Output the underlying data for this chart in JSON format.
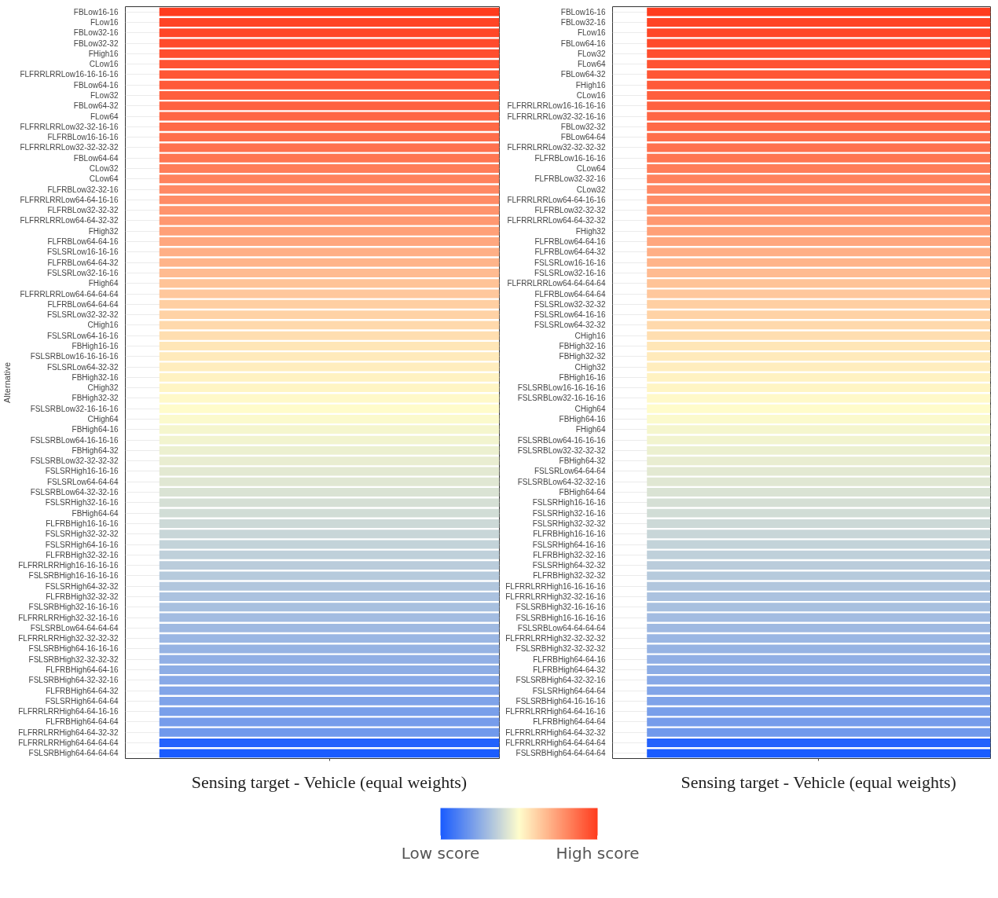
{
  "chart_data": {
    "type": "heatmap",
    "ylabel": "Alternative",
    "grid": "y",
    "categories": [
      "Sensing target - Vehicle (equal weights)",
      "Sensing target - Vehicle (equal weights)"
    ],
    "y_categories": [
      "FBLow16-16",
      "FLow16",
      "FBLow32-16",
      "FBLow32-32",
      "FHigh16",
      "CLow16",
      "FLFRRLRRLow16-16-16-16",
      "FBLow64-16",
      "FLow32",
      "FBLow64-32",
      "FLow64",
      "FLFRRLRRLow32-32-16-16",
      "FLFRBLow16-16-16",
      "FLFRRLRRLow32-32-32-32",
      "FBLow64-64",
      "CLow32",
      "CLow64",
      "FLFRBLow32-32-16",
      "FLFRRLRRLow64-64-16-16",
      "FLFRBLow32-32-32",
      "FLFRRLRRLow64-64-32-32",
      "FHigh32",
      "FLFRBLow64-64-16",
      "FSLSRLow16-16-16",
      "FLFRBLow64-64-32",
      "FSLSRLow32-16-16",
      "FHigh64",
      "FLFRRLRRLow64-64-64-64",
      "FLFRBLow64-64-64",
      "FSLSRLow32-32-32",
      "CHigh16",
      "FSLSRLow64-16-16",
      "FBHigh16-16",
      "FSLSRBLow16-16-16-16",
      "FSLSRLow64-32-32",
      "FBHigh32-16",
      "CHigh32",
      "FBHigh32-32",
      "FSLSRBLow32-16-16-16",
      "CHigh64",
      "FBHigh64-16",
      "FSLSRBLow64-16-16-16",
      "FBHigh64-32",
      "FSLSRBLow32-32-32-32",
      "FSLSRHigh16-16-16",
      "FSLSRLow64-64-64",
      "FSLSRBLow64-32-32-16",
      "FSLSRHigh32-16-16",
      "FBHigh64-64",
      "FLFRBHigh16-16-16",
      "FSLSRHigh32-32-32",
      "FSLSRHigh64-16-16",
      "FLFRBHigh32-32-16",
      "FLFRRLRRHigh16-16-16-16",
      "FSLSRBHigh16-16-16-16",
      "FSLSRHigh64-32-32",
      "FLFRBHigh32-32-32",
      "FSLSRBHigh32-16-16-16",
      "FLFRRLRRHigh32-32-16-16",
      "FSLSRBLow64-64-64-64",
      "FLFRRLRRHigh32-32-32-32",
      "FSLSRBHigh64-16-16-16",
      "FSLSRBHigh32-32-32-32",
      "FLFRBHigh64-64-16",
      "FSLSRBHigh64-32-32-16",
      "FLFRBHigh64-64-32",
      "FSLSRHigh64-64-64",
      "FLFRRLRRHigh64-64-16-16",
      "FLFRBHigh64-64-64",
      "FLFRRLRRHigh64-64-32-32",
      "FLFRRLRRHigh64-64-64-64",
      "FSLSRBHigh64-64-64-64"
    ],
    "y2_categories": [
      "FBLow16-16",
      "FBLow32-16",
      "FLow16",
      "FBLow64-16",
      "FLow32",
      "FLow64",
      "FBLow64-32",
      "FHigh16",
      "CLow16",
      "FLFRRLRRLow16-16-16-16",
      "FLFRRLRRLow32-32-16-16",
      "FBLow32-32",
      "FBLow64-64",
      "FLFRRLRRLow32-32-32-32",
      "FLFRBLow16-16-16",
      "CLow64",
      "FLFRBLow32-32-16",
      "CLow32",
      "FLFRRLRRLow64-64-16-16",
      "FLFRBLow32-32-32",
      "FLFRRLRRLow64-64-32-32",
      "FHigh32",
      "FLFRBLow64-64-16",
      "FLFRBLow64-64-32",
      "FSLSRLow16-16-16",
      "FSLSRLow32-16-16",
      "FLFRRLRRLow64-64-64-64",
      "FLFRBLow64-64-64",
      "FSLSRLow32-32-32",
      "FSLSRLow64-16-16",
      "FSLSRLow64-32-32",
      "CHigh16",
      "FBHigh32-16",
      "FBHigh32-32",
      "CHigh32",
      "FBHigh16-16",
      "FSLSRBLow16-16-16-16",
      "FSLSRBLow32-16-16-16",
      "CHigh64",
      "FBHigh64-16",
      "FHigh64",
      "FSLSRBLow64-16-16-16",
      "FSLSRBLow32-32-32-32",
      "FBHigh64-32",
      "FSLSRLow64-64-64",
      "FSLSRBLow64-32-32-16",
      "FBHigh64-64",
      "FSLSRHigh16-16-16",
      "FSLSRHigh32-16-16",
      "FSLSRHigh32-32-32",
      "FLFRBHigh16-16-16",
      "FSLSRHigh64-16-16",
      "FLFRBHigh32-32-16",
      "FSLSRHigh64-32-32",
      "FLFRBHigh32-32-32",
      "FLFRRLRRHigh16-16-16-16",
      "FLFRRLRRHigh32-32-16-16",
      "FSLSRBHigh32-16-16-16",
      "FSLSRBHigh16-16-16-16",
      "FSLSRBLow64-64-64-64",
      "FLFRRLRRHigh32-32-32-32",
      "FSLSRBHigh32-32-32-32",
      "FLFRBHigh64-64-16",
      "FLFRBHigh64-64-32",
      "FSLSRBHigh64-32-32-16",
      "FSLSRHigh64-64-64",
      "FSLSRBHigh64-16-16-16",
      "FLFRRLRRHigh64-64-16-16",
      "FLFRBHigh64-64-64",
      "FLFRRLRRHigh64-64-32-32",
      "FLFRRLRRHigh64-64-64-64",
      "FSLSRBHigh64-64-64-64"
    ],
    "cells": [
      [
        1.0,
        1.0
      ],
      [
        0.98,
        0.98
      ],
      [
        0.97,
        0.97
      ],
      [
        0.96,
        0.96
      ],
      [
        0.95,
        0.95
      ],
      [
        0.94,
        0.94
      ],
      [
        0.93,
        0.93
      ],
      [
        0.92,
        0.92
      ],
      [
        0.91,
        0.91
      ],
      [
        0.9,
        0.9
      ],
      [
        0.89,
        0.89
      ],
      [
        0.88,
        0.88
      ],
      [
        0.87,
        0.87
      ],
      [
        0.86,
        0.86
      ],
      [
        0.85,
        0.85
      ],
      [
        0.83,
        0.83
      ],
      [
        0.82,
        0.82
      ],
      [
        0.8,
        0.8
      ],
      [
        0.79,
        0.79
      ],
      [
        0.77,
        0.77
      ],
      [
        0.76,
        0.76
      ],
      [
        0.74,
        0.74
      ],
      [
        0.72,
        0.72
      ],
      [
        0.7,
        0.7
      ],
      [
        0.69,
        0.69
      ],
      [
        0.67,
        0.67
      ],
      [
        0.65,
        0.65
      ],
      [
        0.64,
        0.64
      ],
      [
        0.62,
        0.62
      ],
      [
        0.61,
        0.61
      ],
      [
        0.59,
        0.59
      ],
      [
        0.58,
        0.58
      ],
      [
        0.56,
        0.56
      ],
      [
        0.55,
        0.55
      ],
      [
        0.54,
        0.54
      ],
      [
        0.53,
        0.53
      ],
      [
        0.52,
        0.52
      ],
      [
        0.51,
        0.51
      ],
      [
        0.5,
        0.5
      ],
      [
        0.49,
        0.49
      ],
      [
        0.48,
        0.48
      ],
      [
        0.47,
        0.47
      ],
      [
        0.46,
        0.46
      ],
      [
        0.45,
        0.45
      ],
      [
        0.44,
        0.44
      ],
      [
        0.43,
        0.43
      ],
      [
        0.42,
        0.42
      ],
      [
        0.41,
        0.41
      ],
      [
        0.4,
        0.4
      ],
      [
        0.39,
        0.39
      ],
      [
        0.38,
        0.38
      ],
      [
        0.37,
        0.37
      ],
      [
        0.36,
        0.36
      ],
      [
        0.35,
        0.35
      ],
      [
        0.34,
        0.34
      ],
      [
        0.33,
        0.33
      ],
      [
        0.32,
        0.32
      ],
      [
        0.31,
        0.31
      ],
      [
        0.3,
        0.3
      ],
      [
        0.29,
        0.29
      ],
      [
        0.28,
        0.28
      ],
      [
        0.27,
        0.27
      ],
      [
        0.26,
        0.26
      ],
      [
        0.25,
        0.25
      ],
      [
        0.24,
        0.24
      ],
      [
        0.23,
        0.23
      ],
      [
        0.22,
        0.22
      ],
      [
        0.21,
        0.21
      ],
      [
        0.2,
        0.2
      ],
      [
        0.19,
        0.19
      ],
      [
        0.02,
        0.02
      ],
      [
        0.0,
        0.0
      ]
    ],
    "clim": [
      0,
      1
    ],
    "cticks": [
      {
        "value": 0,
        "label": "Low score"
      },
      {
        "value": 1,
        "label": "High score"
      }
    ]
  }
}
